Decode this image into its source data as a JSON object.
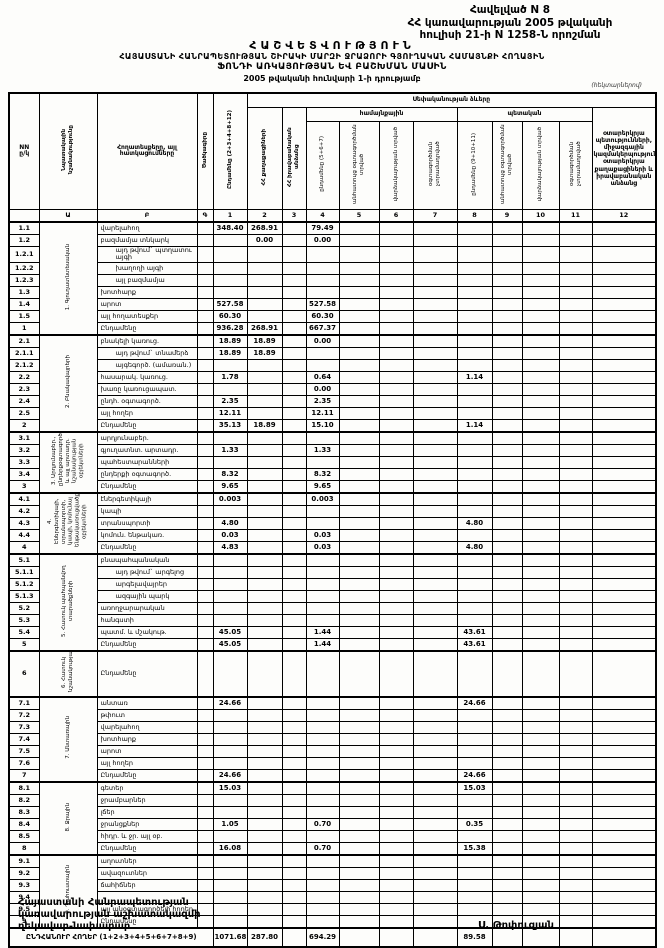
{
  "appendix": {
    "line1": "Հավելված N 8",
    "line2": "ՀՀ կառավարության 2005 թվականի",
    "line3": "հուլիսի 21-ի N 1258-Ն որոշման"
  },
  "title": {
    "line1": "ՀԱՇՎԵՏՎՈՒԹՅՈՒՆ",
    "line2": "ՀԱՅԱՍՏԱՆԻ ՀԱՆՐԱՊԵՏՈՒԹՅԱՆ ՇԻՐԱԿԻ ՄԱՐԶԻ ՋՐԱՁՈՐԻ ԳՅՈՒՂԱԿԱՆ ՀԱՄԱՅՆՔԻ ՀՈՂԱՅԻՆ",
    "line3": "ՖՈՆԴԻ ԱՌԿԱՅՈՒԹՅԱՆ ԵՎ ԲԱՇԽՄԱՆ ՄԱՍԻՆ",
    "line4": "2005 թվականի հունվարի 1-ի դրությամբ",
    "units": "(հեկտարներով)"
  },
  "table": {
    "headers": {
      "nn": "NN\nը/կ",
      "purpose": "Նպատակային նշանակությունը",
      "land_types": "Հողատեսքերը, այլ հատկացումները",
      "code": "Ծածկագիրը",
      "total": "Ընդամենը (2+3+4+8+12)",
      "ownership": "Սեփականության ձևերը",
      "citizens": "ՀՀ քաղաքացիների",
      "legal": "ՀՀ իրավաբանական անձանց",
      "community": "համայնքային",
      "community_total": "ընդամենը (5+6+7)",
      "free_use": "անհատույց օգտագործման տրված",
      "leased": "վարձակալության տրված",
      "not_provided": "օգտագործման չտրամադրված",
      "state": "պետական",
      "state_total": "ընդամենը (9+10+11)",
      "state_free_use": "անհատույց օգտագործման տրված",
      "state_leased": "վարձակալության տրված",
      "state_not_provided": "օգտագործման չտրամադրված",
      "foreign": "օտարերկրյա պետությունների, միջազգային կազմակերպությունների, օտարերկրյա քաղաքացիների և իրավաբանական անձանց",
      "col_letters": [
        "",
        "Ա",
        "Բ",
        "Գ",
        "1",
        "2",
        "3",
        "4",
        "5",
        "6",
        "7",
        "8",
        "9",
        "10",
        "11",
        "12"
      ]
    },
    "sections": [
      {
        "id": "1",
        "title": "1. Գյուղատնտեսական",
        "tall": false,
        "rows": [
          [
            "1.1",
            "վարելահող",
            {
              "1": "348.40",
              "2": "268.91",
              "4": "79.49"
            }
          ],
          [
            "1.2",
            "բազմամյա տնկարկ",
            {
              "2": "0.00",
              "4": "0.00"
            }
          ],
          [
            "1.2.1",
            "այդ թվում` պտղատու այգի",
            {}
          ],
          [
            "1.2.2",
            "խաղողի այգի",
            {}
          ],
          [
            "1.2.3",
            "այլ բազմամյա",
            {}
          ],
          [
            "1.3",
            "խոտհարք",
            {}
          ],
          [
            "1.4",
            "արոտ",
            {
              "1": "527.58",
              "4": "527.58"
            }
          ],
          [
            "1.5",
            "այլ հողատեսքեր",
            {
              "1": "60.30",
              "4": "60.30"
            }
          ],
          [
            "1",
            "Ընդամենը",
            {
              "1": "936.28",
              "2": "268.91",
              "4": "667.37"
            }
          ]
        ]
      },
      {
        "id": "2",
        "title": "2. Բնակավայրերի",
        "tall": false,
        "rows": [
          [
            "2.1",
            "բնակելի կառուց.",
            {
              "1": "18.89",
              "2": "18.89",
              "4": "0.00"
            }
          ],
          [
            "2.1.1",
            "այդ թվում` տնամերձ",
            {
              "1": "18.89",
              "2": "18.89"
            }
          ],
          [
            "2.1.2",
            "այգեգործ. (ամառան.)",
            {}
          ],
          [
            "2.2",
            "հասարակ. կառուց.",
            {
              "1": "1.78",
              "4": "0.64",
              "8": "1.14"
            }
          ],
          [
            "2.3",
            "խառը կառուցապատ.",
            {
              "4": "0.00"
            }
          ],
          [
            "2.4",
            "ընդհ. օգտագործ.",
            {
              "1": "2.35",
              "4": "2.35"
            }
          ],
          [
            "2.5",
            "այլ հողեր",
            {
              "1": "12.11",
              "4": "12.11"
            }
          ],
          [
            "2",
            "Ընդամենը",
            {
              "1": "35.13",
              "2": "18.89",
              "4": "15.10",
              "8": "1.14"
            }
          ]
        ]
      },
      {
        "id": "3",
        "title": "3. Արդյունաբեր., ընդերքօգտագործման և այլ արտադր. նշանակության օբյեկտների",
        "tall": false,
        "rows": [
          [
            "3.1",
            "արդյունաբեր.",
            {}
          ],
          [
            "3.2",
            "գյուղատնտ. արտադր.",
            {
              "1": "1.33",
              "4": "1.33"
            }
          ],
          [
            "3.3",
            "պահեստարանների",
            {}
          ],
          [
            "3.4",
            "ընդերքի օգտագործ.",
            {
              "1": "8.32",
              "4": "8.32"
            }
          ],
          [
            "3",
            "Ընդամենը",
            {
              "1": "9.65",
              "4": "9.65"
            }
          ]
        ]
      },
      {
        "id": "4",
        "title": "4. Էներգետիկայի, տրանսպորտի, կապի, կոմունալ ենթակառուցվածքների օբյեկտների",
        "tall": false,
        "rows": [
          [
            "4.1",
            "էներգետիկայի",
            {
              "1": "0.003",
              "4": "0.003"
            }
          ],
          [
            "4.2",
            "կապի",
            {}
          ],
          [
            "4.3",
            "տրանսպորտի",
            {
              "1": "4.80",
              "8": "4.80"
            }
          ],
          [
            "4.4",
            "կոմուն. ենթակառ.",
            {
              "1": "0.03",
              "4": "0.03"
            }
          ],
          [
            "4",
            "Ընդամենը",
            {
              "1": "4.83",
              "4": "0.03",
              "8": "4.80"
            }
          ]
        ]
      },
      {
        "id": "5",
        "title": "5. Հատուկ պահպանվող տարածքների",
        "tall": false,
        "rows": [
          [
            "5.1",
            "բնապահպանական",
            {}
          ],
          [
            "5.1.1",
            "այդ թվում` արգելոց",
            {}
          ],
          [
            "5.1.2",
            "արգելավայրեր",
            {}
          ],
          [
            "5.1.3",
            "ազգային պարկ",
            {}
          ],
          [
            "5.2",
            "առողջարարական",
            {}
          ],
          [
            "5.3",
            "հանգստի",
            {}
          ],
          [
            "5.4",
            "պատմ. և մշակութ.",
            {
              "1": "45.05",
              "4": "1.44",
              "8": "43.61"
            }
          ],
          [
            "5",
            "Ընդամենը",
            {
              "1": "45.05",
              "4": "1.44",
              "8": "43.61"
            }
          ]
        ]
      },
      {
        "id": "6",
        "title": "6. Հատուկ նշանակության",
        "tall": true,
        "rows": [
          [
            "6",
            "Ընդամենը",
            {}
          ]
        ]
      },
      {
        "id": "7",
        "title": "7. Անտառային",
        "tall": false,
        "rows": [
          [
            "7.1",
            "անտառ",
            {
              "1": "24.66",
              "8": "24.66"
            }
          ],
          [
            "7.2",
            "թփուտ",
            {}
          ],
          [
            "7.3",
            "վարելահող",
            {}
          ],
          [
            "7.4",
            "խոտհարք",
            {}
          ],
          [
            "7.5",
            "արոտ",
            {}
          ],
          [
            "7.6",
            "այլ հողեր",
            {}
          ],
          [
            "7",
            "Ընդամենը",
            {
              "1": "24.66",
              "8": "24.66"
            }
          ]
        ]
      },
      {
        "id": "8",
        "title": "8. Ջրային",
        "tall": false,
        "rows": [
          [
            "8.1",
            "գետեր",
            {
              "1": "15.03",
              "8": "15.03"
            }
          ],
          [
            "8.2",
            "ջրամբարներ",
            {}
          ],
          [
            "8.3",
            "լճեր",
            {}
          ],
          [
            "8.4",
            "ջրանցքներ",
            {
              "1": "1.05",
              "4": "0.70",
              "8": "0.35"
            }
          ],
          [
            "8.5",
            "հիդր. և ջր. այլ օբ.",
            {}
          ],
          [
            "8",
            "Ընդամենը",
            {
              "1": "16.08",
              "4": "0.70",
              "8": "15.38"
            }
          ]
        ]
      },
      {
        "id": "9",
        "title": "9. Պահուստային",
        "tall": false,
        "rows": [
          [
            "9.1",
            "աղուտներ",
            {}
          ],
          [
            "9.2",
            "ավազուտներ",
            {}
          ],
          [
            "9.3",
            "ճահիճներ",
            {}
          ],
          [
            "9.4",
            "",
            {}
          ],
          [
            "9.5",
            "այլ անօգտագործելի հողեր",
            {}
          ],
          [
            "9",
            "Ընդամենը",
            {}
          ]
        ]
      }
    ],
    "total": {
      "label": "ԸՆԴՀԱՆՈՒՐ ՀՈՂԵՐ (1+2+3+4+5+6+7+8+9)",
      "v": {
        "1": "1071.68",
        "2": "287.80",
        "4": "694.29",
        "8": "89.58"
      }
    }
  },
  "footer": {
    "left1": "Հայաստանի Հանրապետության",
    "left2": "կառավարության աշխատակազմի",
    "left3": "ղեկավար-նախարար",
    "signature": "Ս. Թոփուզյան"
  }
}
